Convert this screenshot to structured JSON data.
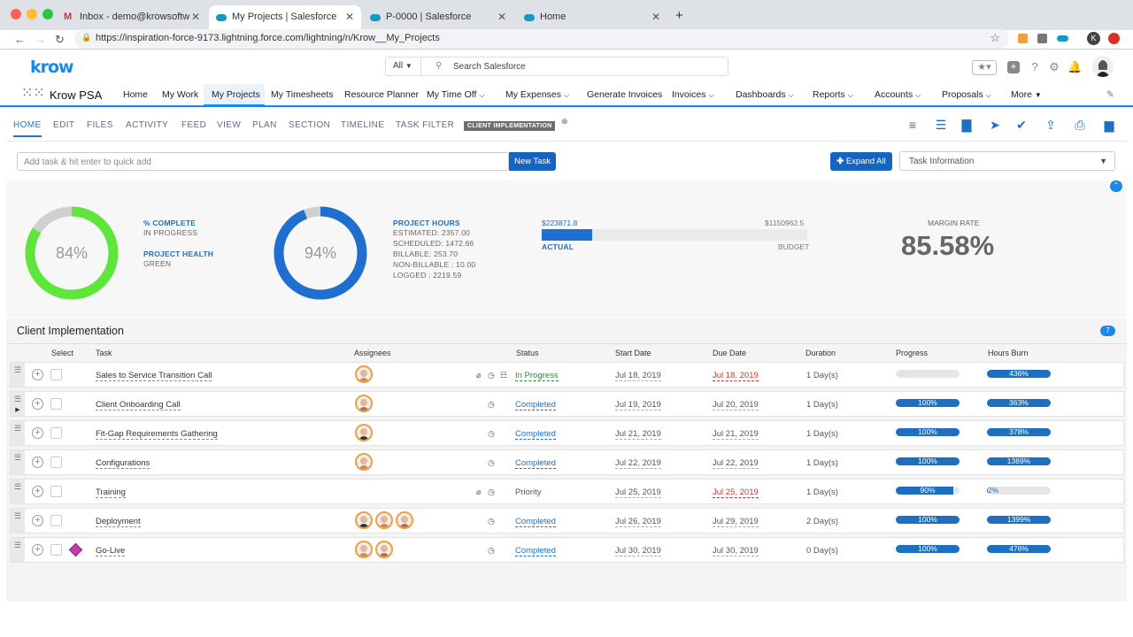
{
  "browser": {
    "tabs": [
      {
        "title": "Inbox - demo@krowsoftware.co",
        "icon": "gmail-icon"
      },
      {
        "title": "My Projects | Salesforce",
        "icon": "salesforce-icon",
        "active": true
      },
      {
        "title": "P-0000 | Salesforce",
        "icon": "salesforce-icon"
      },
      {
        "title": "Home",
        "icon": "salesforce-icon"
      }
    ],
    "new_tab": "+",
    "url": "https://inspiration-force-9173.lightning.force.com/lightning/n/Krow__My_Projects"
  },
  "header": {
    "logo": "krow",
    "search_scope": "All",
    "search_placeholder": "Search Salesforce",
    "avatar_letter": "K"
  },
  "nav": {
    "app_name": "Krow PSA",
    "items": [
      "Home",
      "My Work",
      "My Projects",
      "My Timesheets",
      "Resource Planner",
      "My Time Off",
      "My Expenses",
      "Generate Invoices",
      "Invoices",
      "Dashboards",
      "Reports",
      "Accounts",
      "Proposals",
      "More"
    ]
  },
  "project_tabs": {
    "items": [
      "HOME",
      "EDIT",
      "FILES",
      "ACTIVITY",
      "FEED",
      "VIEW",
      "PLAN",
      "SECTION",
      "TIMELINE",
      "TASK FILTER"
    ],
    "badge": "CLIENT IMPLEMENTATION"
  },
  "toolbar": {
    "quick_add_placeholder": "Add task & hit enter to quick add",
    "new_task": "New Task",
    "expand_all": "Expand All",
    "task_info": "Task Information"
  },
  "summary": {
    "complete_pct": "84%",
    "complete_value": 0.84,
    "complete_label": "% COMPLETE",
    "complete_status": "IN PROGRESS",
    "health_label": "PROJECT HEALTH",
    "health_value": "GREEN",
    "hours_pct": "94%",
    "hours_value": 0.94,
    "hours_label": "PROJECT HOURS",
    "hours_lines": [
      "ESTIMATED: 2357.00",
      "SCHEDULED: 1472.66",
      "BILLABLE: 253.70",
      "NON-BILLABLE : 10.00",
      "LOGGED : 2219.59"
    ],
    "actual_amount": "$223871.8",
    "budget_amount": "$1150962.5",
    "actual_label": "ACTUAL",
    "budget_label": "BUDGET",
    "actual_fraction": 0.19,
    "margin_label": "MARGIN RATE",
    "margin_value": "85.58%",
    "colors": {
      "green": "#5ee63a",
      "blue": "#1e6fcf",
      "grey": "#d0d0d0"
    }
  },
  "table": {
    "title": "Client Implementation",
    "count": "7",
    "headers": [
      "Select",
      "Task",
      "Assignees",
      "Status",
      "Start Date",
      "Due Date",
      "Duration",
      "Progress",
      "Hours Burn"
    ],
    "rows": [
      {
        "task": "Sales to Service Transition Call",
        "status": "In Progress",
        "start": "Jul 18, 2019",
        "due": "Jul 18, 2019",
        "due_overdue": true,
        "duration": "1 Day(s)",
        "progress": "0%",
        "progress_value": 0,
        "burn": "436%",
        "burn_value": 1,
        "assignees": 1
      },
      {
        "task": "Client Onboarding Call",
        "status": "Completed",
        "start": "Jul 19, 2019",
        "due": "Jul 20, 2019",
        "due_overdue": false,
        "duration": "1 Day(s)",
        "progress": "100%",
        "progress_value": 1,
        "burn": "363%",
        "burn_value": 1,
        "assignees": 1
      },
      {
        "task": "Fit-Gap Requirements Gathering",
        "status": "Completed",
        "start": "Jul 21, 2019",
        "due": "Jul 21, 2019",
        "due_overdue": false,
        "duration": "1 Day(s)",
        "progress": "100%",
        "progress_value": 1,
        "burn": "378%",
        "burn_value": 1,
        "assignees": 1
      },
      {
        "task": "Configurations",
        "status": "Completed",
        "start": "Jul 22, 2019",
        "due": "Jul 22, 2019",
        "due_overdue": false,
        "duration": "1 Day(s)",
        "progress": "100%",
        "progress_value": 1,
        "burn": "1389%",
        "burn_value": 1,
        "assignees": 1
      },
      {
        "task": "Training",
        "status": "Priority",
        "start": "Jul 25, 2019",
        "due": "Jul 25, 2019",
        "due_overdue": true,
        "duration": "1 Day(s)",
        "progress": "90%",
        "progress_value": 0.9,
        "burn": "2%",
        "burn_value": 0.02,
        "assignees": 0
      },
      {
        "task": "Deployment",
        "status": "Completed",
        "start": "Jul 26, 2019",
        "due": "Jul 29, 2019",
        "due_overdue": false,
        "duration": "2 Day(s)",
        "progress": "100%",
        "progress_value": 1,
        "burn": "1399%",
        "burn_value": 1,
        "assignees": 3
      },
      {
        "task": "Go-Live",
        "status": "Completed",
        "start": "Jul 30, 2019",
        "due": "Jul 30, 2019",
        "due_overdue": false,
        "duration": "0 Day(s)",
        "progress": "100%",
        "progress_value": 1,
        "burn": "476%",
        "burn_value": 1,
        "assignees": 2,
        "milestone": true
      }
    ]
  }
}
